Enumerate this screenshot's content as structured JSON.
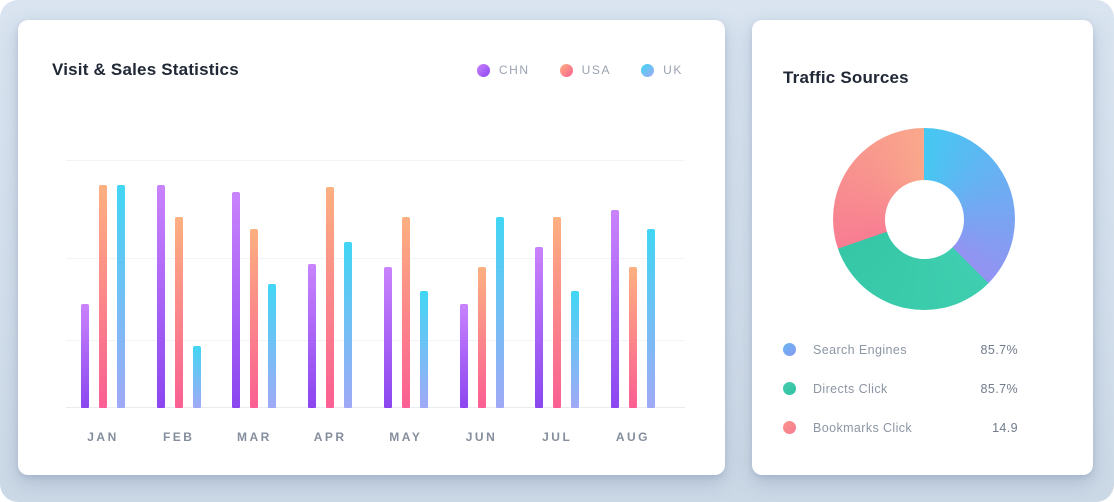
{
  "page": {
    "background": "#d2deeb"
  },
  "left_card": {
    "title": "Visit & Sales Statistics"
  },
  "right_card": {
    "title": "Traffic Sources"
  },
  "chart_data": [
    {
      "type": "bar",
      "title": "Visit & Sales Statistics",
      "categories": [
        "JAN",
        "FEB",
        "MAR",
        "APR",
        "MAY",
        "JUN",
        "JUL",
        "AUG"
      ],
      "series": [
        {
          "name": "CHN",
          "color_top": "#c983fc",
          "color_bottom": "#8b46f0",
          "values": [
            42,
            90,
            87,
            58,
            57,
            42,
            65,
            80
          ]
        },
        {
          "name": "USA",
          "color_top": "#fcb080",
          "color_bottom": "#fa5f93",
          "values": [
            90,
            77,
            72,
            89,
            77,
            57,
            77,
            57
          ]
        },
        {
          "name": "UK",
          "color_top": "#41d6f4",
          "color_bottom": "#a0a9f6",
          "values": [
            90,
            25,
            50,
            67,
            47,
            77,
            47,
            72
          ]
        }
      ],
      "ylim": [
        0,
        100
      ],
      "grid": true,
      "legend_position": "top-right"
    },
    {
      "type": "pie",
      "donut": true,
      "title": "Traffic Sources",
      "slices": [
        {
          "label": "Search Engines",
          "display_value": "85.7%",
          "from_deg": 0,
          "to_deg": 135,
          "color_from": "#45c8f2",
          "color_to": "#9492f2",
          "dot_from": "#66b6ef",
          "dot_to": "#8b97f3"
        },
        {
          "label": "Directs Click",
          "display_value": "85.7%",
          "from_deg": 135,
          "to_deg": 251,
          "color_from": "#3fcfb0",
          "color_to": "#35c7a6",
          "dot_from": "#44cdae",
          "dot_to": "#2fc0a1"
        },
        {
          "label": "Bookmarks Click",
          "display_value": "14.9",
          "from_deg": 251,
          "to_deg": 360,
          "color_from": "#f87d92",
          "color_to": "#f9a88b",
          "dot_from": "#f9948a",
          "dot_to": "#f87b91"
        }
      ]
    }
  ]
}
